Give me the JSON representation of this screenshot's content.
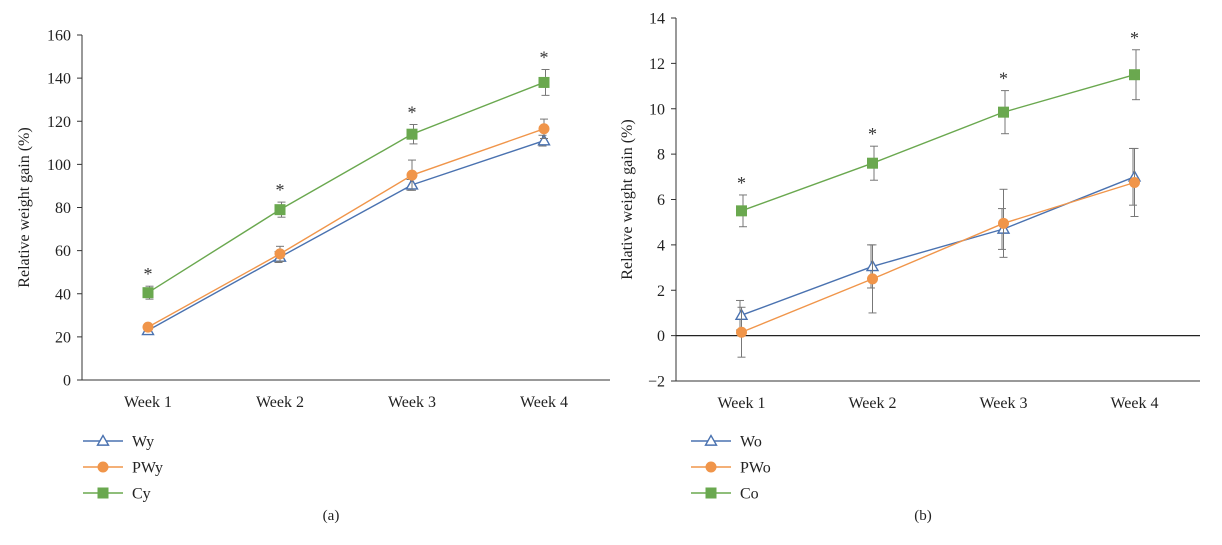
{
  "chart_data": [
    {
      "type": "line",
      "panel_label": "(a)",
      "ylabel": "Relative weight gain (%)",
      "categories": [
        "Week 1",
        "Week 2",
        "Week 3",
        "Week 4"
      ],
      "ylim": [
        0,
        160
      ],
      "yticks": [
        0,
        20,
        40,
        60,
        80,
        100,
        120,
        140,
        160
      ],
      "grid": false,
      "legend_position": "bottom-left",
      "significance_mark": "*",
      "significance_on": [
        "Week 1",
        "Week 2",
        "Week 3",
        "Week 4"
      ],
      "series": [
        {
          "name": "Wy",
          "marker": "triangle",
          "color": "#4a72b0",
          "values": [
            23,
            57,
            90.5,
            111
          ],
          "errors": [
            1.5,
            2.5,
            2.5,
            2.5
          ]
        },
        {
          "name": "PWy",
          "marker": "circle",
          "color": "#f0954a",
          "values": [
            24.5,
            58.5,
            95,
            116.5
          ],
          "errors": [
            1.5,
            3.5,
            7,
            4.5
          ]
        },
        {
          "name": "Cy",
          "marker": "square",
          "color": "#6aa84f",
          "values": [
            40.5,
            79,
            114,
            138
          ],
          "errors": [
            3,
            3.5,
            4.5,
            6
          ]
        }
      ]
    },
    {
      "type": "line",
      "panel_label": "(b)",
      "ylabel": "Relative weight gain (%)",
      "categories": [
        "Week 1",
        "Week 2",
        "Week 3",
        "Week 4"
      ],
      "ylim": [
        -2,
        14
      ],
      "yticks": [
        -2,
        0,
        2,
        4,
        6,
        8,
        10,
        12,
        14
      ],
      "ytick_labels": [
        "−2",
        "0",
        "2",
        "4",
        "6",
        "8",
        "10",
        "12",
        "14"
      ],
      "zero_line": true,
      "grid": false,
      "legend_position": "bottom-left",
      "significance_mark": "*",
      "significance_on": [
        "Week 1",
        "Week 2",
        "Week 3",
        "Week 4"
      ],
      "series": [
        {
          "name": "Wo",
          "marker": "triangle",
          "color": "#4a72b0",
          "values": [
            0.9,
            3.05,
            4.7,
            7.0
          ],
          "errors": [
            0.65,
            0.95,
            0.9,
            1.25
          ]
        },
        {
          "name": "PWo",
          "marker": "circle",
          "color": "#f0954a",
          "values": [
            0.15,
            2.5,
            4.95,
            6.75
          ],
          "errors": [
            1.1,
            1.5,
            1.5,
            1.5
          ]
        },
        {
          "name": "Co",
          "marker": "square",
          "color": "#6aa84f",
          "values": [
            5.5,
            7.6,
            9.85,
            11.5
          ],
          "errors": [
            0.7,
            0.75,
            0.95,
            1.1
          ]
        }
      ]
    }
  ]
}
